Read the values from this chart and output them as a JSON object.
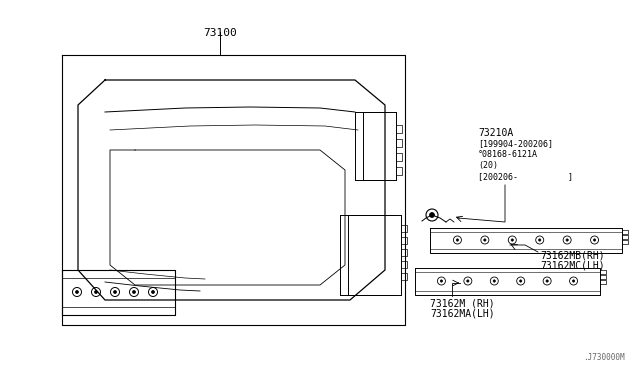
{
  "bg_color": "#ffffff",
  "title_label": "73100",
  "label_73210A": "73210A",
  "label_199904": "[199904-200206]",
  "label_B_bolt": "°08168-6121A",
  "label_20": "(20)",
  "label_200206": "[200206-          ]",
  "label_73162MB": "73162MB(RH)",
  "label_73162MC": "73162MC(LH)",
  "label_73162M": "73162M (RH)",
  "label_73162MA": "73162MA(LH)",
  "label_J730000M": ".J730000M",
  "font_size_labels": 7.0,
  "font_size_part": 8.0
}
